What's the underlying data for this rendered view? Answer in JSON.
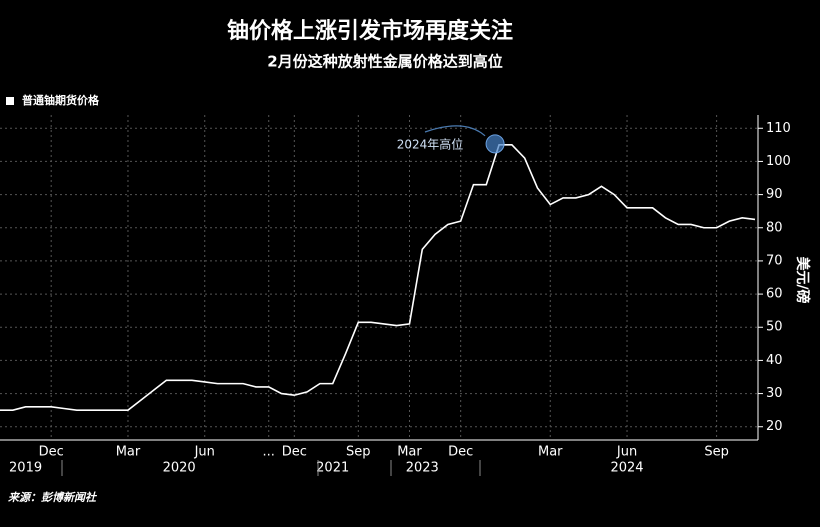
{
  "chart_data": {
    "type": "line",
    "title": "铀价格上涨引发市场再度关注",
    "subtitle": "2月份这种放射性金属价格达到高位",
    "y_label": "美元/磅",
    "source": "来源：彭博新闻社",
    "annotation": "2024年高位",
    "categories": [
      null,
      null,
      null,
      null,
      "Dec",
      null,
      null,
      null,
      null,
      null,
      "Mar",
      null,
      null,
      null,
      null,
      null,
      "Jun",
      null,
      null,
      null,
      null,
      "...",
      null,
      "Dec",
      null,
      null,
      null,
      null,
      "Sep",
      null,
      null,
      null,
      "Mar",
      null,
      null,
      null,
      "Dec",
      null,
      null,
      null,
      null,
      null,
      null,
      "Mar",
      null,
      null,
      null,
      null,
      null,
      "Jun",
      null,
      null,
      null,
      null,
      null,
      null,
      "Sep",
      null,
      null,
      null
    ],
    "years": [
      null,
      null,
      "2019",
      null,
      null,
      null,
      null,
      null,
      null,
      null,
      null,
      null,
      null,
      null,
      "2020",
      null,
      null,
      null,
      null,
      null,
      null,
      null,
      null,
      null,
      null,
      null,
      "2021",
      null,
      null,
      null,
      null,
      null,
      null,
      "2023",
      null,
      null,
      null,
      null,
      null,
      null,
      null,
      null,
      null,
      null,
      null,
      null,
      null,
      null,
      null,
      "2024",
      null,
      null,
      null,
      null,
      null,
      null,
      null,
      null,
      null,
      null
    ],
    "series": [
      {
        "name": "普通铀期货价格",
        "color": "#ffffff",
        "values": [
          25,
          25,
          26,
          26,
          26,
          25.5,
          25,
          25,
          25,
          25,
          25,
          28,
          31,
          34,
          34,
          34,
          33.5,
          33,
          33,
          33,
          32,
          32,
          30,
          29.5,
          30.5,
          33,
          33,
          42,
          51.5,
          51.5,
          51,
          50.5,
          51,
          73.5,
          78,
          81,
          82,
          93,
          93,
          105,
          105,
          101,
          92,
          87,
          89,
          89,
          90,
          92.5,
          90,
          86,
          86,
          86,
          83,
          81,
          81,
          80,
          80,
          82,
          83,
          82.5
        ]
      }
    ],
    "ylim": [
      16,
      114
    ],
    "yticks": [
      20,
      30,
      40,
      50,
      60,
      70,
      80,
      90,
      100,
      110
    ],
    "grid": true
  }
}
